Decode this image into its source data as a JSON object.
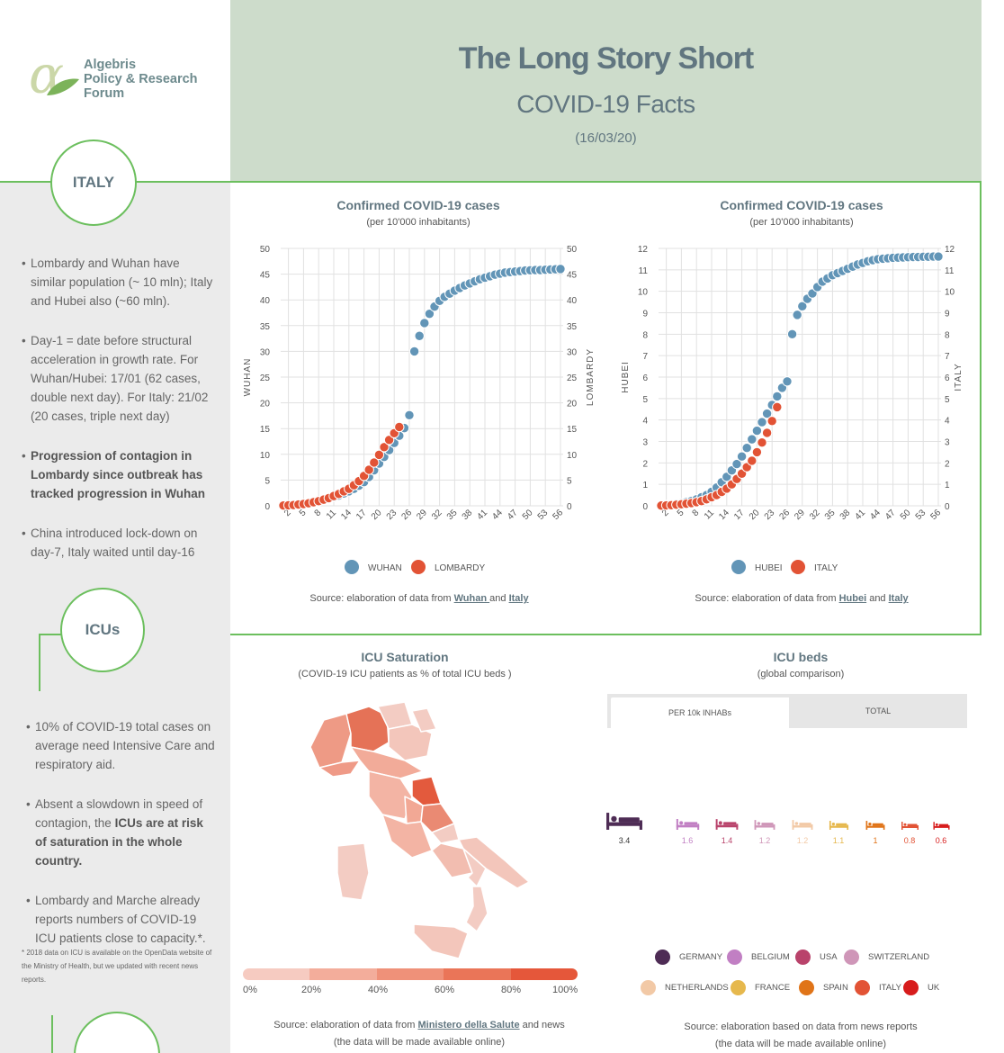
{
  "header": {
    "title": "The Long Story Short",
    "subtitle": "COVID-19 Facts",
    "date": "(16/03/20)"
  },
  "logo": {
    "symbol": "α",
    "line1": "Algebris",
    "line2": "Policy & Research",
    "line3": "Forum"
  },
  "sidebar": {
    "italy_label": "ITALY",
    "icus_label": "ICUs",
    "italy_bullets": [
      "Lombardy and Wuhan have similar population (~ 10 mln); Italy and Hubei also (~60 mln).",
      "Day-1 = date before structural acceleration in growth rate. For Wuhan/Hubei: 17/01 (62 cases, double next day). For Italy: 21/02 (20 cases, triple next day)",
      "Progression of contagion in Lombardy since outbreak has tracked progression in Wuhan",
      "China introduced lock-down on day-7, Italy waited until day-16"
    ],
    "icu_bullets": [
      "10% of COVID-19 total cases on average need Intensive Care and respiratory aid.",
      "Absent a slowdown in speed of contagion, the ",
      "ICUs are at risk of saturation in the whole country.",
      "Lombardy and Marche already reports numbers of COVID-19 ICU patients close to capacity.*."
    ],
    "footnote": "* 2018 data on ICU is available on the OpenData website of the Ministry of Health, but we updated with recent news reports."
  },
  "chart_data": [
    {
      "type": "scatter",
      "title": "Confirmed COVID-19 cases",
      "subtitle": "(per 10'000 inhabitants)",
      "ylabel": "WUHAN",
      "ylabel_right": "LOMBARDY",
      "ylim": [
        0,
        50
      ],
      "yticks": [
        0,
        5,
        10,
        15,
        20,
        25,
        30,
        35,
        40,
        45,
        50
      ],
      "xticks": [
        "2",
        "5",
        "8",
        "11",
        "14",
        "17",
        "20",
        "23",
        "26",
        "29",
        "32",
        "35",
        "38",
        "41",
        "44",
        "47",
        "50",
        "53",
        "56"
      ],
      "series": [
        {
          "name": "WUHAN",
          "color": "#6295b7",
          "x": [
            1,
            2,
            3,
            4,
            5,
            6,
            7,
            8,
            9,
            10,
            11,
            12,
            13,
            14,
            15,
            16,
            17,
            18,
            19,
            20,
            21,
            22,
            23,
            24,
            25,
            26,
            27,
            28,
            29,
            30,
            31,
            32,
            33,
            34,
            35,
            36,
            37,
            38,
            39,
            40,
            41,
            42,
            43,
            44,
            45,
            46,
            47,
            48,
            49,
            50,
            51,
            52,
            53,
            54,
            55,
            56
          ],
          "y": [
            0.1,
            0.15,
            0.2,
            0.3,
            0.4,
            0.5,
            0.7,
            0.9,
            1.1,
            1.4,
            1.7,
            2.0,
            2.4,
            2.8,
            3.3,
            3.9,
            4.6,
            5.6,
            6.9,
            8.2,
            9.5,
            10.8,
            12.2,
            13.6,
            15.1,
            17.6,
            30,
            33,
            35.5,
            37.3,
            38.7,
            39.8,
            40.6,
            41.2,
            41.8,
            42.3,
            42.8,
            43.2,
            43.6,
            44.0,
            44.3,
            44.6,
            44.9,
            45.1,
            45.3,
            45.4,
            45.5,
            45.6,
            45.7,
            45.75,
            45.8,
            45.8,
            45.85,
            45.9,
            45.95,
            46.0
          ]
        },
        {
          "name": "LOMBARDY",
          "color": "#e25335",
          "x": [
            1,
            2,
            3,
            4,
            5,
            6,
            7,
            8,
            9,
            10,
            11,
            12,
            13,
            14,
            15,
            16,
            17,
            18,
            19,
            20,
            21,
            22,
            23,
            24
          ],
          "y": [
            0.05,
            0.1,
            0.15,
            0.25,
            0.35,
            0.5,
            0.7,
            0.9,
            1.2,
            1.5,
            1.9,
            2.3,
            2.8,
            3.3,
            4.0,
            4.8,
            5.8,
            7.0,
            8.4,
            9.9,
            11.4,
            12.8,
            14.1,
            15.3
          ]
        }
      ],
      "source_prefix": "Source: elaboration of data from ",
      "source_link1": "Wuhan ",
      "source_and": " and ",
      "source_link2": "Italy"
    },
    {
      "type": "scatter",
      "title": "Confirmed COVID-19 cases",
      "subtitle": "(per 10'000 inhabitants)",
      "ylabel": "HUBEI",
      "ylabel_right": "ITALY",
      "ylim": [
        0,
        12
      ],
      "yticks": [
        0,
        1,
        2,
        3,
        4,
        5,
        6,
        7,
        8,
        9,
        10,
        11,
        12
      ],
      "xticks": [
        "2",
        "5",
        "8",
        "11",
        "14",
        "17",
        "20",
        "23",
        "26",
        "29",
        "32",
        "35",
        "38",
        "41",
        "44",
        "47",
        "50",
        "53",
        "56"
      ],
      "series": [
        {
          "name": "HUBEI",
          "color": "#6295b7",
          "x": [
            1,
            2,
            3,
            4,
            5,
            6,
            7,
            8,
            9,
            10,
            11,
            12,
            13,
            14,
            15,
            16,
            17,
            18,
            19,
            20,
            21,
            22,
            23,
            24,
            25,
            26,
            27,
            28,
            29,
            30,
            31,
            32,
            33,
            34,
            35,
            36,
            37,
            38,
            39,
            40,
            41,
            42,
            43,
            44,
            45,
            46,
            47,
            48,
            49,
            50,
            51,
            52,
            53,
            54,
            55,
            56
          ],
          "y": [
            0.02,
            0.04,
            0.06,
            0.09,
            0.12,
            0.17,
            0.22,
            0.3,
            0.4,
            0.5,
            0.65,
            0.85,
            1.1,
            1.35,
            1.65,
            1.95,
            2.3,
            2.7,
            3.1,
            3.5,
            3.9,
            4.3,
            4.7,
            5.1,
            5.5,
            5.8,
            8.0,
            8.9,
            9.3,
            9.65,
            9.9,
            10.2,
            10.45,
            10.6,
            10.75,
            10.85,
            10.95,
            11.05,
            11.15,
            11.25,
            11.32,
            11.4,
            11.45,
            11.5,
            11.52,
            11.54,
            11.56,
            11.57,
            11.58,
            11.59,
            11.6,
            11.6,
            11.61,
            11.61,
            11.62,
            11.62
          ]
        },
        {
          "name": "ITALY",
          "color": "#e25335",
          "x": [
            1,
            2,
            3,
            4,
            5,
            6,
            7,
            8,
            9,
            10,
            11,
            12,
            13,
            14,
            15,
            16,
            17,
            18,
            19,
            20,
            21,
            22,
            23,
            24
          ],
          "y": [
            0.01,
            0.02,
            0.03,
            0.05,
            0.07,
            0.1,
            0.13,
            0.17,
            0.22,
            0.3,
            0.4,
            0.5,
            0.65,
            0.8,
            1.0,
            1.25,
            1.5,
            1.8,
            2.1,
            2.5,
            2.95,
            3.4,
            3.95,
            4.6
          ]
        }
      ],
      "source_prefix": "Source: elaboration of data from ",
      "source_link1": "Hubei",
      "source_and": " and ",
      "source_link2": "Italy"
    },
    {
      "type": "bar",
      "title": "ICU beds",
      "subtitle": "(global comparison)",
      "tabs": [
        "PER 10k INHABs",
        "TOTAL"
      ],
      "active_tab": 0,
      "categories": [
        "GERMANY",
        "BELGIUM",
        "USA",
        "SWITZERLAND",
        "NETHERLANDS",
        "FRANCE",
        "SPAIN",
        "ITALY",
        "UK"
      ],
      "values": [
        3.4,
        1.6,
        1.4,
        1.2,
        1.2,
        1.1,
        1,
        0.8,
        0.6
      ],
      "value_labels": [
        "3.4",
        "1.6",
        "1.4",
        "1.2",
        "1.2",
        "1.1",
        "1",
        "0.8",
        "0.6"
      ],
      "colors": [
        "#4e2c55",
        "#c17fc3",
        "#b9436b",
        "#cf96b8",
        "#f2c9a6",
        "#e6b84d",
        "#e07418",
        "#e25335",
        "#d71c1c"
      ],
      "source_line1": "Source: elaboration based on data from news reports",
      "source_line2": "(the data will be made available online)"
    }
  ],
  "icu_map": {
    "title": "ICU Saturation",
    "subtitle": "(COVID-19 ICU patients as %  of  total ICU beds )",
    "scale_labels": [
      "0%",
      "20%",
      "40%",
      "60%",
      "80%",
      "100%"
    ],
    "scale_colors": [
      "#f6cbc1",
      "#f3ad9b",
      "#ef9179",
      "#ea7558",
      "#e5573a"
    ],
    "source_prefix": "Source: elaboration of data from ",
    "source_link": "Ministero della Salute",
    "source_suffix": " and news",
    "source_line2": "(the data will be made available online)"
  }
}
